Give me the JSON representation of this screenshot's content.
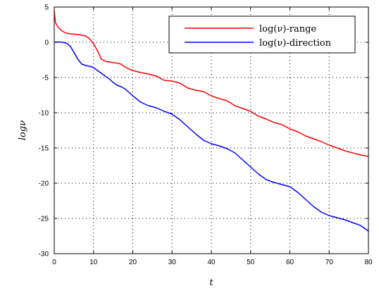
{
  "chart_data": {
    "type": "line",
    "xlabel": "t",
    "ylabel": "logν",
    "xlim": [
      0,
      80
    ],
    "ylim": [
      -30,
      5
    ],
    "xticks": [
      "0",
      "10",
      "20",
      "30",
      "40",
      "50",
      "60",
      "70",
      "80"
    ],
    "yticks": [
      "5",
      "0",
      "-5",
      "-10",
      "-15",
      "-20",
      "-25",
      "-30"
    ],
    "grid": true,
    "legend_position": "top-right",
    "series": [
      {
        "name": "log(ν)-range",
        "color": "#ff0000",
        "x": [
          0,
          0.3,
          1,
          2,
          3,
          4,
          5,
          6,
          7,
          8,
          9,
          10,
          11,
          12,
          13,
          14,
          15,
          16,
          17,
          18,
          19,
          20,
          22,
          24,
          26,
          28,
          30,
          32,
          34,
          36,
          38,
          40,
          42,
          44,
          46,
          48,
          50,
          52,
          54,
          56,
          58,
          60,
          62,
          64,
          66,
          68,
          70,
          72,
          74,
          76,
          78,
          80
        ],
        "y": [
          4.5,
          2.8,
          2.1,
          1.6,
          1.3,
          1.2,
          1.15,
          1.1,
          1.0,
          0.9,
          0.5,
          -0.2,
          -1.2,
          -2.4,
          -2.7,
          -2.8,
          -2.9,
          -2.95,
          -3.1,
          -3.5,
          -3.8,
          -4.0,
          -4.3,
          -4.5,
          -4.8,
          -5.4,
          -5.5,
          -5.8,
          -6.5,
          -6.8,
          -7.0,
          -7.6,
          -8.0,
          -8.3,
          -9.0,
          -9.4,
          -9.8,
          -10.5,
          -10.9,
          -11.4,
          -11.7,
          -12.3,
          -12.7,
          -13.3,
          -13.7,
          -14.1,
          -14.6,
          -15.0,
          -15.4,
          -15.7,
          -16.0,
          -16.2
        ]
      },
      {
        "name": "log(ν)-direction",
        "color": "#0000ff",
        "x": [
          0,
          1,
          2,
          3,
          4,
          5,
          6,
          7,
          8,
          9,
          10,
          11,
          12,
          13,
          14,
          15,
          16,
          17,
          18,
          19,
          20,
          22,
          24,
          26,
          28,
          30,
          32,
          34,
          36,
          38,
          40,
          42,
          44,
          46,
          48,
          50,
          52,
          54,
          56,
          58,
          60,
          62,
          64,
          66,
          68,
          70,
          72,
          74,
          76,
          78,
          80
        ],
        "y": [
          0,
          0.05,
          0.0,
          -0.1,
          -0.5,
          -1.4,
          -2.4,
          -3.1,
          -3.3,
          -3.4,
          -3.6,
          -4.0,
          -4.4,
          -4.8,
          -5.2,
          -5.7,
          -6.1,
          -6.3,
          -6.6,
          -7.1,
          -7.6,
          -8.5,
          -9.0,
          -9.3,
          -9.8,
          -10.2,
          -11.0,
          -12.0,
          -13.0,
          -13.9,
          -14.4,
          -14.7,
          -15.1,
          -15.7,
          -16.7,
          -17.7,
          -18.7,
          -19.5,
          -19.9,
          -20.2,
          -20.5,
          -21.3,
          -22.3,
          -23.3,
          -24.1,
          -24.6,
          -24.9,
          -25.2,
          -25.6,
          -26.0,
          -26.8
        ]
      }
    ]
  }
}
